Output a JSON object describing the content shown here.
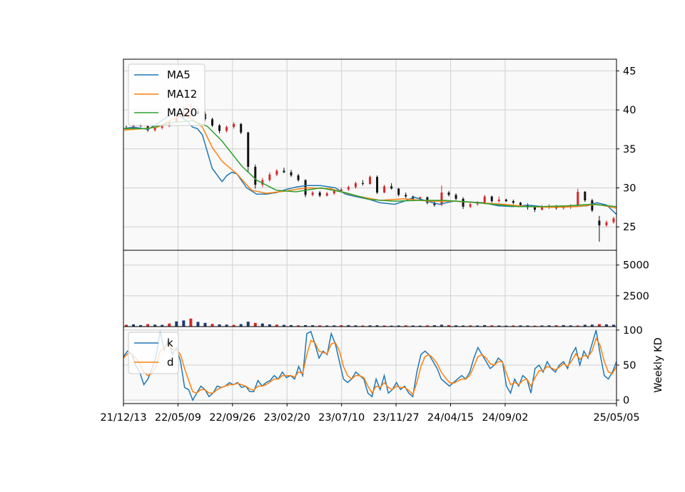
{
  "chart_data": [
    {
      "type": "line",
      "panel": "price",
      "xlabel": "",
      "ylabel": "",
      "ylim": [
        22,
        46.5
      ],
      "yticks": [
        "25",
        "30",
        "35",
        "40",
        "45"
      ],
      "grid": true,
      "legend_placement": "top-left",
      "candles_ohlc": [
        [
          37.7,
          38.0,
          37.4,
          37.6
        ],
        [
          37.6,
          38.2,
          37.5,
          38.0
        ],
        [
          38.0,
          38.3,
          37.8,
          37.9
        ],
        [
          37.9,
          38.0,
          37.2,
          37.4
        ],
        [
          37.4,
          37.8,
          37.2,
          37.7
        ],
        [
          37.7,
          38.1,
          37.5,
          37.9
        ],
        [
          37.9,
          38.6,
          37.8,
          38.5
        ],
        [
          38.5,
          39.2,
          38.3,
          39.0
        ],
        [
          39.0,
          40.5,
          38.8,
          39.6
        ],
        [
          39.6,
          40.8,
          39.0,
          39.8
        ],
        [
          39.8,
          40.2,
          39.4,
          39.5
        ],
        [
          39.5,
          39.8,
          38.6,
          38.8
        ],
        [
          38.8,
          39.0,
          37.8,
          38.0
        ],
        [
          38.0,
          38.2,
          37.0,
          37.3
        ],
        [
          37.3,
          38.0,
          37.1,
          37.8
        ],
        [
          37.8,
          38.4,
          37.6,
          38.2
        ],
        [
          38.2,
          38.3,
          36.9,
          37.1
        ],
        [
          37.1,
          37.2,
          32.0,
          32.7
        ],
        [
          32.7,
          33.0,
          29.9,
          30.4
        ],
        [
          30.4,
          31.3,
          30.1,
          31.0
        ],
        [
          31.0,
          32.0,
          30.8,
          31.7
        ],
        [
          31.7,
          32.4,
          31.5,
          32.2
        ],
        [
          32.2,
          32.6,
          31.9,
          32.0
        ],
        [
          32.0,
          32.3,
          31.4,
          31.6
        ],
        [
          31.6,
          31.8,
          30.8,
          31.0
        ],
        [
          31.0,
          31.1,
          28.8,
          29.1
        ],
        [
          29.1,
          29.6,
          28.9,
          29.4
        ],
        [
          29.4,
          29.6,
          28.8,
          29.0
        ],
        [
          29.0,
          29.5,
          28.9,
          29.3
        ],
        [
          29.3,
          29.8,
          29.1,
          29.6
        ],
        [
          29.6,
          30.0,
          29.4,
          29.8
        ],
        [
          29.8,
          30.3,
          29.6,
          30.1
        ],
        [
          30.1,
          30.8,
          29.9,
          30.6
        ],
        [
          30.6,
          31.0,
          30.3,
          30.5
        ],
        [
          30.5,
          31.6,
          30.4,
          31.4
        ],
        [
          31.4,
          31.6,
          29.2,
          29.4
        ],
        [
          29.4,
          30.4,
          29.3,
          30.2
        ],
        [
          30.2,
          30.6,
          29.8,
          29.9
        ],
        [
          29.9,
          30.0,
          28.9,
          29.1
        ],
        [
          29.1,
          29.4,
          28.7,
          28.9
        ],
        [
          28.9,
          29.0,
          28.4,
          28.6
        ],
        [
          28.6,
          28.9,
          28.3,
          28.8
        ],
        [
          28.8,
          28.9,
          27.9,
          28.1
        ],
        [
          28.1,
          28.3,
          27.6,
          27.8
        ],
        [
          27.8,
          30.3,
          27.7,
          29.4
        ],
        [
          29.4,
          29.6,
          28.9,
          29.1
        ],
        [
          29.1,
          29.3,
          28.4,
          28.6
        ],
        [
          28.6,
          28.8,
          27.3,
          27.6
        ],
        [
          27.6,
          28.1,
          27.4,
          27.9
        ],
        [
          27.9,
          28.3,
          27.7,
          28.0
        ],
        [
          28.0,
          29.1,
          27.9,
          28.9
        ],
        [
          28.9,
          29.0,
          28.1,
          28.3
        ],
        [
          28.3,
          28.9,
          28.1,
          28.5
        ],
        [
          28.5,
          28.6,
          28.2,
          28.3
        ],
        [
          28.3,
          28.5,
          27.9,
          28.1
        ],
        [
          28.1,
          28.2,
          27.6,
          27.8
        ],
        [
          27.8,
          28.0,
          27.2,
          27.5
        ],
        [
          27.5,
          27.7,
          26.9,
          27.2
        ],
        [
          27.2,
          27.8,
          27.1,
          27.6
        ],
        [
          27.6,
          27.9,
          27.3,
          27.7
        ],
        [
          27.7,
          27.8,
          27.2,
          27.4
        ],
        [
          27.4,
          27.7,
          27.2,
          27.5
        ],
        [
          27.5,
          27.9,
          27.3,
          27.8
        ],
        [
          27.8,
          29.9,
          27.7,
          29.5
        ],
        [
          29.5,
          29.6,
          28.2,
          28.4
        ],
        [
          28.4,
          28.6,
          26.9,
          27.1
        ],
        [
          25.8,
          26.4,
          23.1,
          25.2
        ],
        [
          25.2,
          25.8,
          25.0,
          25.6
        ],
        [
          25.6,
          26.3,
          25.4,
          26.1
        ]
      ],
      "series": [
        {
          "name": "MA5",
          "color": "#1f77b4",
          "x": [
            0,
            0.02,
            0.05,
            0.07,
            0.1,
            0.11,
            0.13,
            0.14,
            0.15,
            0.16,
            0.18,
            0.2,
            0.21,
            0.22,
            0.23,
            0.25,
            0.27,
            0.29,
            0.31,
            0.33,
            0.35,
            0.37,
            0.4,
            0.43,
            0.45,
            0.47,
            0.5,
            0.52,
            0.55,
            0.57,
            0.59,
            0.61,
            0.64,
            0.67,
            0.7,
            0.73,
            0.76,
            0.79,
            0.82,
            0.85,
            0.88,
            0.91,
            0.94,
            0.96,
            0.98,
            1
          ],
          "values": [
            37.6,
            37.8,
            37.5,
            38.3,
            39.6,
            39.4,
            38.5,
            37.8,
            37.6,
            36.8,
            32.5,
            30.8,
            31.6,
            32.0,
            31.8,
            30.0,
            29.2,
            29.2,
            29.4,
            29.8,
            30.1,
            30.3,
            30.3,
            30.0,
            29.2,
            28.9,
            28.5,
            28.1,
            27.9,
            28.3,
            28.8,
            28.4,
            27.9,
            28.3,
            28.2,
            28.1,
            27.7,
            27.6,
            27.8,
            27.6,
            27.6,
            27.6,
            27.7,
            28.1,
            27.8,
            26.6
          ]
        },
        {
          "name": "MA12",
          "color": "#ff7f0e",
          "x": [
            0,
            0.04,
            0.07,
            0.1,
            0.12,
            0.14,
            0.16,
            0.18,
            0.2,
            0.23,
            0.26,
            0.29,
            0.33,
            0.37,
            0.42,
            0.47,
            0.52,
            0.57,
            0.62,
            0.67,
            0.72,
            0.77,
            0.82,
            0.87,
            0.92,
            0.96,
            1
          ],
          "values": [
            37.4,
            37.6,
            37.8,
            38.8,
            39.4,
            38.8,
            37.8,
            35.2,
            33.4,
            31.8,
            29.7,
            29.3,
            29.6,
            30.0,
            29.9,
            29.0,
            28.4,
            28.6,
            28.3,
            28.3,
            28.1,
            27.9,
            27.6,
            27.5,
            27.6,
            27.9,
            27.4
          ]
        },
        {
          "name": "MA20",
          "color": "#2ca02c",
          "x": [
            0,
            0.05,
            0.1,
            0.14,
            0.17,
            0.2,
            0.24,
            0.27,
            0.31,
            0.35,
            0.4,
            0.45,
            0.5,
            0.55,
            0.6,
            0.65,
            0.7,
            0.75,
            0.8,
            0.85,
            0.9,
            0.95,
            1
          ],
          "values": [
            37.6,
            37.6,
            38.4,
            38.6,
            37.9,
            36.0,
            32.8,
            31.0,
            29.7,
            29.5,
            30.0,
            29.4,
            28.5,
            28.3,
            28.4,
            28.4,
            28.2,
            27.9,
            27.6,
            27.6,
            27.7,
            27.9,
            27.6
          ]
        }
      ]
    },
    {
      "type": "bar",
      "panel": "volume",
      "xlabel": "",
      "ylabel": "",
      "ylim": [
        0,
        6200
      ],
      "yticks": [
        "2500",
        "5000"
      ],
      "grid": true,
      "values": [
        150,
        180,
        120,
        200,
        160,
        140,
        250,
        420,
        500,
        650,
        380,
        300,
        220,
        180,
        160,
        140,
        200,
        400,
        300,
        250,
        180,
        160,
        140,
        120,
        100,
        120,
        110,
        100,
        90,
        100,
        110,
        120,
        100,
        90,
        100,
        110,
        90,
        80,
        90,
        100,
        90,
        80,
        100,
        110,
        150,
        120,
        100,
        90,
        100,
        90,
        120,
        100,
        90,
        80,
        90,
        100,
        90,
        80,
        90,
        100,
        110,
        120,
        100,
        90,
        150,
        160,
        200,
        180,
        150
      ]
    },
    {
      "type": "line",
      "panel": "kd",
      "xlabel": "",
      "ylabel": "Weekly KD",
      "ylim": [
        -5,
        105
      ],
      "yticks": [
        "0",
        "50",
        "100"
      ],
      "grid": true,
      "legend_placement": "top-left",
      "xtick_labels": [
        "21/12/13",
        "22/05/09",
        "22/09/26",
        "23/02/20",
        "23/07/10",
        "23/11/27",
        "24/04/15",
        "24/09/02",
        "25/05/05"
      ],
      "series": [
        {
          "name": "k",
          "color": "#1f77b4",
          "values": [
            62,
            70,
            66,
            50,
            40,
            22,
            30,
            45,
            62,
            98,
            72,
            85,
            65,
            75,
            55,
            18,
            15,
            0,
            10,
            20,
            15,
            5,
            10,
            20,
            18,
            20,
            25,
            22,
            25,
            18,
            20,
            12,
            12,
            28,
            20,
            25,
            28,
            35,
            30,
            40,
            32,
            35,
            30,
            48,
            35,
            95,
            98,
            80,
            60,
            70,
            65,
            95,
            80,
            55,
            30,
            25,
            30,
            40,
            35,
            30,
            10,
            5,
            30,
            15,
            35,
            10,
            15,
            25,
            15,
            20,
            10,
            5,
            40,
            65,
            70,
            65,
            55,
            45,
            30,
            25,
            20,
            25,
            30,
            35,
            30,
            40,
            60,
            75,
            65,
            55,
            45,
            50,
            60,
            55,
            20,
            10,
            30,
            20,
            35,
            30,
            10,
            45,
            50,
            40,
            55,
            45,
            40,
            50,
            55,
            45,
            65,
            75,
            50,
            70,
            60,
            80,
            100,
            65,
            35,
            30,
            40,
            55
          ]
        },
        {
          "name": "d",
          "color": "#ff7f0e",
          "values": [
            60,
            66,
            66,
            60,
            52,
            40,
            35,
            38,
            48,
            70,
            75,
            80,
            72,
            72,
            65,
            45,
            28,
            12,
            10,
            15,
            15,
            10,
            10,
            15,
            18,
            20,
            22,
            22,
            24,
            22,
            20,
            16,
            14,
            20,
            20,
            22,
            26,
            30,
            30,
            35,
            35,
            35,
            33,
            40,
            38,
            65,
            85,
            82,
            70,
            68,
            66,
            80,
            82,
            70,
            48,
            35,
            30,
            35,
            35,
            32,
            20,
            10,
            20,
            18,
            25,
            18,
            15,
            20,
            18,
            18,
            14,
            8,
            25,
            48,
            62,
            65,
            60,
            52,
            40,
            32,
            25,
            24,
            27,
            30,
            30,
            35,
            48,
            62,
            65,
            60,
            52,
            50,
            55,
            55,
            38,
            22,
            25,
            22,
            28,
            30,
            20,
            32,
            42,
            42,
            48,
            46,
            43,
            47,
            52,
            48,
            56,
            66,
            58,
            64,
            62,
            70,
            88,
            78,
            55,
            40,
            38,
            48
          ]
        }
      ]
    }
  ]
}
